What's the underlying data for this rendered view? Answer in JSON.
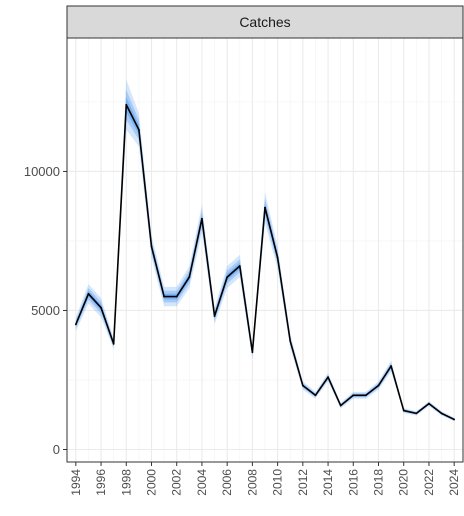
{
  "chart_data": {
    "type": "line",
    "title": "",
    "facet_strip": "Catches",
    "xlabel": "",
    "ylabel": "",
    "xlim": [
      1993.3,
      2024.7
    ],
    "ylim": [
      -450,
      14800
    ],
    "x_ticks": [
      1994,
      1996,
      1998,
      2000,
      2002,
      2004,
      2006,
      2008,
      2010,
      2012,
      2014,
      2016,
      2018,
      2020,
      2022,
      2024
    ],
    "y_ticks": [
      0,
      5000,
      10000
    ],
    "grid": true,
    "legend": "none",
    "colors": {
      "line": "#000000",
      "band": "#3d8ef0",
      "panel_border": "#333333",
      "strip_fill": "#d9d9d9"
    },
    "series": [
      {
        "x": [
          1994,
          1995,
          1996,
          1997,
          1998,
          1999,
          2000,
          2001,
          2002,
          2003,
          2004,
          2005,
          2006,
          2007,
          2008,
          2009,
          2010,
          2011,
          2012,
          2013,
          2014,
          2015,
          2016,
          2017,
          2018,
          2019,
          2020,
          2021,
          2022,
          2023,
          2024
        ],
        "values": [
          4500,
          5600,
          5100,
          3800,
          12400,
          11500,
          7300,
          5500,
          5500,
          6200,
          8300,
          4800,
          6200,
          6600,
          3500,
          8700,
          6900,
          3900,
          2300,
          1950,
          2600,
          1580,
          1950,
          1950,
          2300,
          3000,
          1400,
          1300,
          1650,
          1300,
          1080
        ],
        "band_half_width": [
          250,
          350,
          350,
          200,
          900,
          600,
          400,
          350,
          350,
          400,
          500,
          300,
          400,
          400,
          250,
          550,
          400,
          250,
          150,
          120,
          150,
          100,
          120,
          120,
          150,
          200,
          90,
          80,
          90,
          80,
          70
        ]
      }
    ]
  }
}
